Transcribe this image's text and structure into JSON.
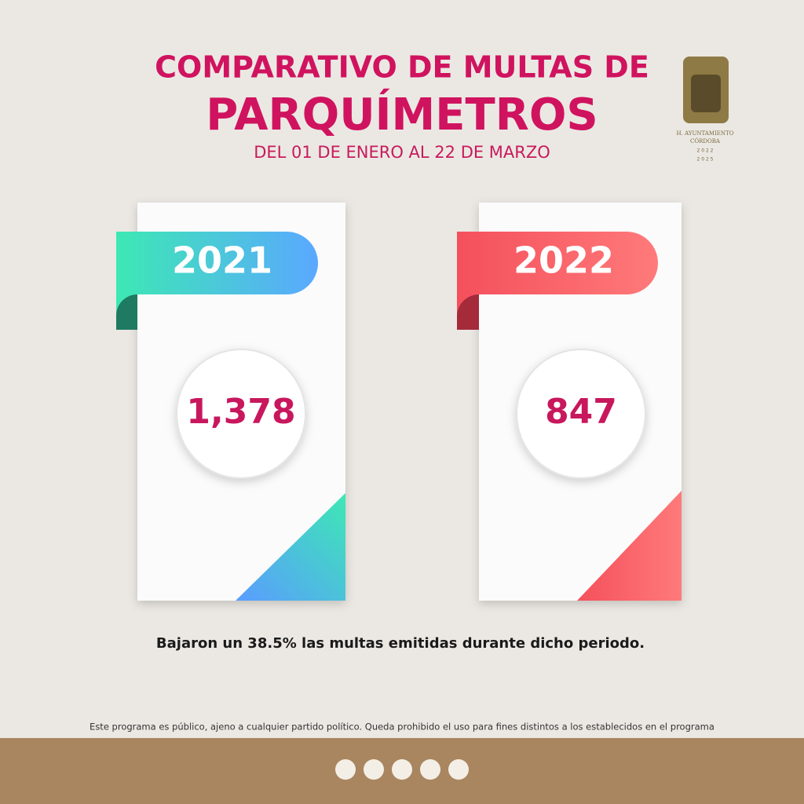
{
  "header": {
    "title_line1": "COMPARATIVO DE MULTAS DE",
    "title_line2": "PARQUÍMETROS",
    "subtitle": "DEL 01 DE ENERO AL 22 DE MARZO"
  },
  "logo": {
    "line1": "H. AYUNTAMIENTO",
    "line2": "CÓRDOBA",
    "line3": "2 0 2 2",
    "line4": "2 0 2 5"
  },
  "cards": [
    {
      "year": "2021",
      "value": "1,378"
    },
    {
      "year": "2022",
      "value": "847"
    }
  ],
  "summary": "Bajaron un 38.5% las multas emitidas durante dicho periodo.",
  "footer": {
    "disclaimer": "Este programa es público, ajeno a cualquier partido político. Queda prohibido el uso para fines distintos a los establecidos en el programa"
  }
}
